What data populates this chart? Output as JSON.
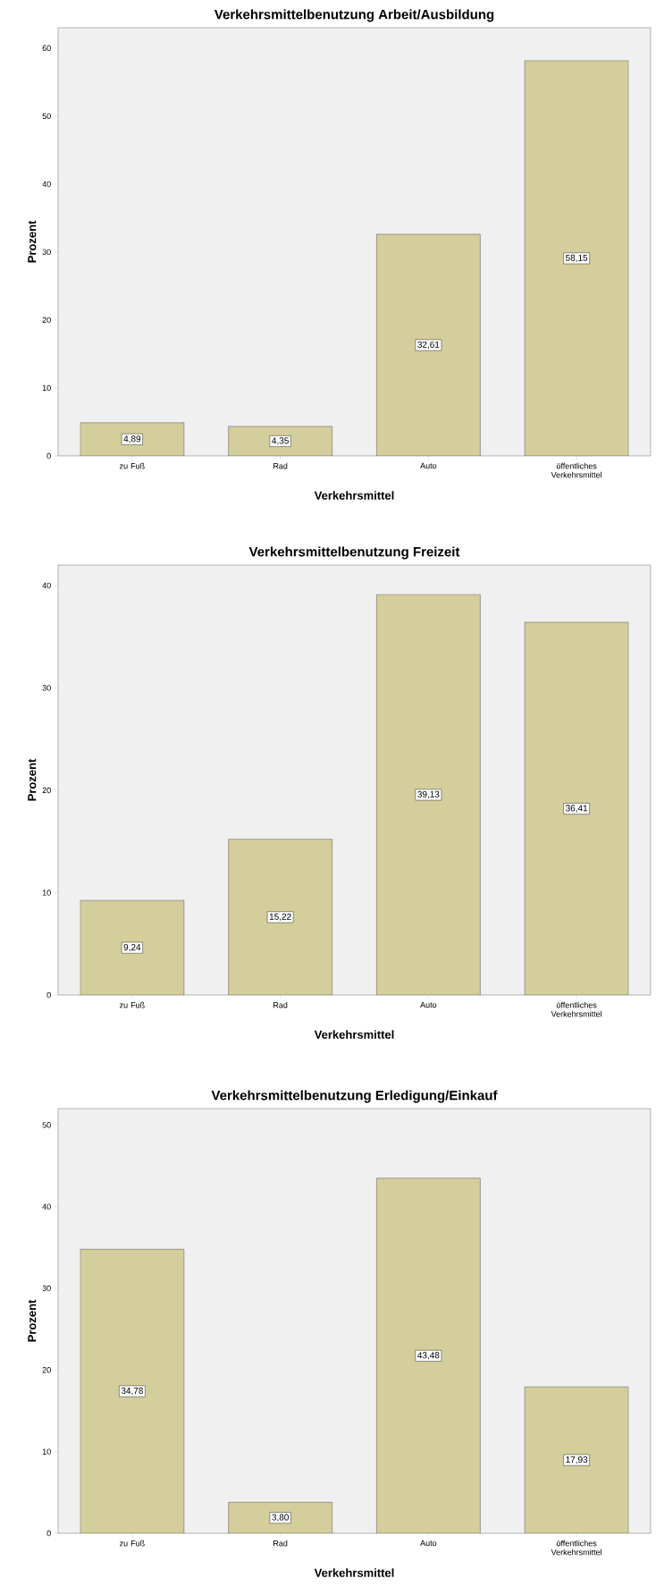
{
  "chart_data": [
    {
      "type": "bar",
      "title": "Verkehrsmittelbenutzung Arbeit/Ausbildung",
      "xlabel": "Verkehrsmittel",
      "ylabel": "Prozent",
      "categories": [
        "zu Fuß",
        "Rad",
        "Auto",
        "öffentliches Verkehrsmittel"
      ],
      "values": [
        4.89,
        4.35,
        32.61,
        58.15
      ],
      "value_labels": [
        "4,89",
        "4,35",
        "32,61",
        "58,15"
      ],
      "color": "#d3ce9b",
      "ylim": [
        0,
        63
      ],
      "yticks": [
        0,
        10,
        20,
        30,
        40,
        50,
        60
      ]
    },
    {
      "type": "bar",
      "title": "Verkehrsmittelbenutzung Freizeit",
      "xlabel": "Verkehrsmittel",
      "ylabel": "Prozent",
      "categories": [
        "zu Fuß",
        "Rad",
        "Auto",
        "öffentliches Verkehrsmittel"
      ],
      "values": [
        9.24,
        15.22,
        39.13,
        36.41
      ],
      "value_labels": [
        "9,24",
        "15,22",
        "39,13",
        "36,41"
      ],
      "color": "#d3ce9b",
      "ylim": [
        0,
        42
      ],
      "yticks": [
        0,
        10,
        20,
        30,
        40
      ]
    },
    {
      "type": "bar",
      "title": "Verkehrsmittelbenutzung Erledigung/Einkauf",
      "xlabel": "Verkehrsmittel",
      "ylabel": "Prozent",
      "categories": [
        "zu Fuß",
        "Rad",
        "Auto",
        "öffentliches Verkehrsmittel"
      ],
      "values": [
        34.78,
        3.8,
        43.48,
        17.93
      ],
      "value_labels": [
        "34,78",
        "3,80",
        "43,48",
        "17,93"
      ],
      "color": "#d3ce9b",
      "ylim": [
        0,
        52
      ],
      "yticks": [
        0,
        10,
        20,
        30,
        40,
        50
      ]
    }
  ]
}
